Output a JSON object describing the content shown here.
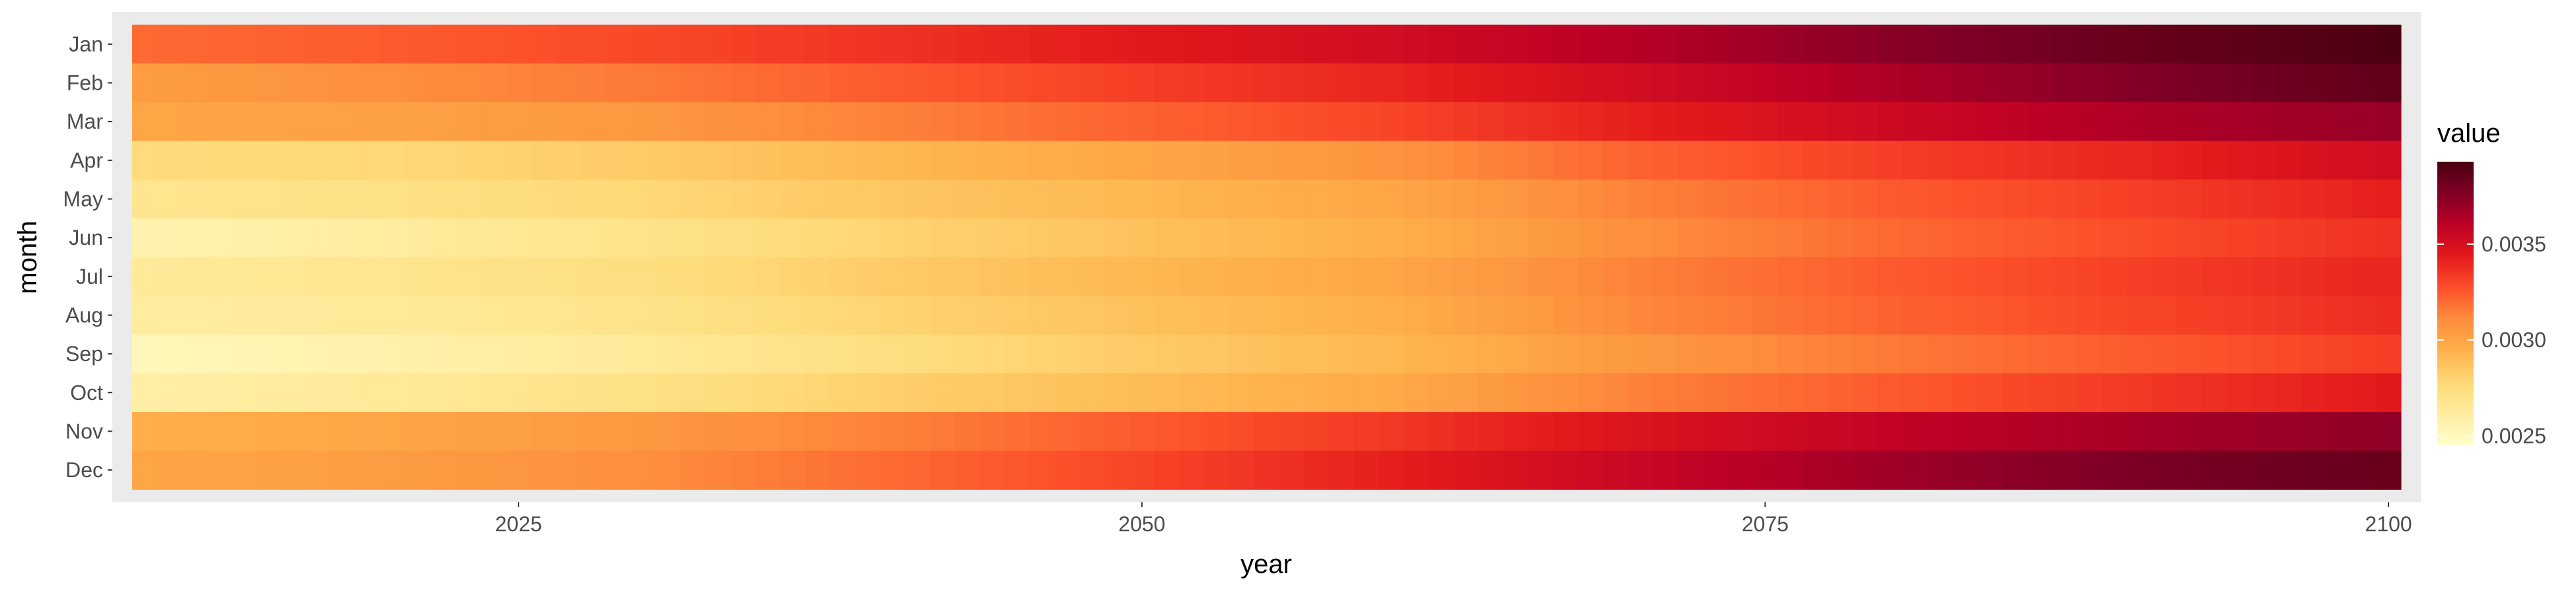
{
  "chart_data": {
    "type": "heatmap",
    "title": "",
    "xlabel": "year",
    "ylabel": "month",
    "x_range": [
      2010,
      2100
    ],
    "x_ticks": [
      2025,
      2050,
      2075,
      2100
    ],
    "x_tick_labels": [
      "2025",
      "2050",
      "2075",
      "2100"
    ],
    "months": [
      "Jan",
      "Feb",
      "Mar",
      "Apr",
      "May",
      "Jun",
      "Jul",
      "Aug",
      "Sep",
      "Oct",
      "Nov",
      "Dec"
    ],
    "year_anchors": [
      2010,
      2020,
      2030,
      2040,
      2050,
      2060,
      2070,
      2080,
      2090,
      2100
    ],
    "values_by_month": {
      "Jan": [
        0.0032,
        0.00324,
        0.00329,
        0.00336,
        0.00344,
        0.00352,
        0.00362,
        0.00374,
        0.00384,
        0.00392
      ],
      "Feb": [
        0.00304,
        0.0031,
        0.00316,
        0.00324,
        0.00332,
        0.0034,
        0.00352,
        0.00364,
        0.00376,
        0.00386
      ],
      "Mar": [
        0.003,
        0.00302,
        0.00306,
        0.00314,
        0.00322,
        0.0033,
        0.00342,
        0.00354,
        0.00364,
        0.0037
      ],
      "Apr": [
        0.00276,
        0.00278,
        0.00284,
        0.00292,
        0.003,
        0.00308,
        0.00322,
        0.00332,
        0.0034,
        0.00352
      ],
      "May": [
        0.00268,
        0.00272,
        0.00278,
        0.00286,
        0.00292,
        0.003,
        0.00314,
        0.00324,
        0.00332,
        0.00342
      ],
      "Jun": [
        0.00256,
        0.00262,
        0.0027,
        0.0028,
        0.00288,
        0.00296,
        0.0031,
        0.0032,
        0.00328,
        0.00336
      ],
      "Jul": [
        0.00264,
        0.00268,
        0.00274,
        0.00284,
        0.00292,
        0.003,
        0.00314,
        0.00324,
        0.00332,
        0.0034
      ],
      "Aug": [
        0.00262,
        0.00264,
        0.0027,
        0.0028,
        0.00288,
        0.00296,
        0.00312,
        0.00322,
        0.0033,
        0.00338
      ],
      "Sep": [
        0.00252,
        0.00258,
        0.00264,
        0.00274,
        0.00284,
        0.00292,
        0.00306,
        0.00316,
        0.00324,
        0.00332
      ],
      "Oct": [
        0.0026,
        0.00264,
        0.00272,
        0.00282,
        0.0029,
        0.00298,
        0.00314,
        0.00324,
        0.00334,
        0.00344
      ],
      "Nov": [
        0.00296,
        0.003,
        0.00306,
        0.00314,
        0.00324,
        0.00334,
        0.00348,
        0.00358,
        0.00366,
        0.00372
      ],
      "Dec": [
        0.003,
        0.00304,
        0.0031,
        0.0032,
        0.0033,
        0.00342,
        0.00356,
        0.00368,
        0.00378,
        0.00384
      ]
    },
    "legend": {
      "title": "value",
      "position": "right",
      "ticks": [
        0.0025,
        0.003,
        0.0035
      ],
      "tick_labels": [
        "0.0025",
        "0.0030",
        "0.0035"
      ],
      "range": [
        0.00245,
        0.00393
      ]
    },
    "colorscale": [
      "#ffffcc",
      "#ffeda0",
      "#fed976",
      "#feb24c",
      "#fd8d3c",
      "#fc4e2a",
      "#e31a1c",
      "#bd0026",
      "#800026",
      "#4a0010"
    ],
    "grid": false,
    "background": "#ebebeb"
  }
}
